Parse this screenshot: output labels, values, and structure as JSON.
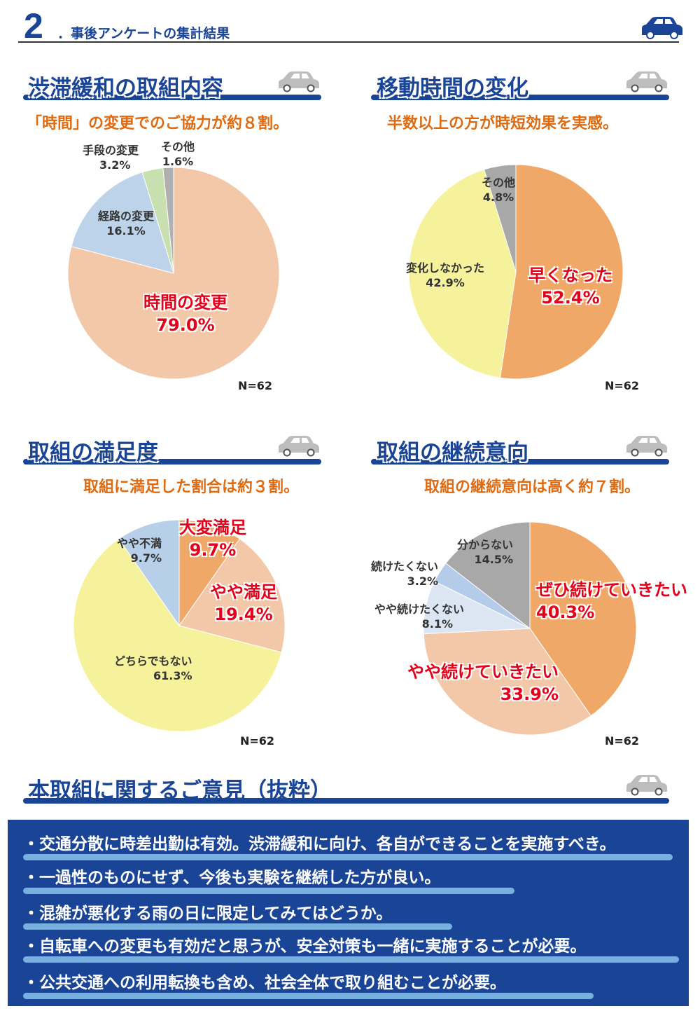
{
  "header": {
    "number": "2",
    "title": "．事後アンケートの集計結果",
    "icon": "car-icon"
  },
  "colors": {
    "brand": "#1a4496",
    "subtitle": "#e06a10",
    "highlight": "#e5001a"
  },
  "chart_data": [
    {
      "type": "pie",
      "title": "渋滞緩和の取組内容",
      "subtitle": "「時間」の変更でのご協力が約８割。",
      "n_label": "N=62",
      "slices": [
        {
          "label": "時間の変更",
          "value": 79.0,
          "pct": "79.0%",
          "color": "#f2c8a8"
        },
        {
          "label": "経路の変更",
          "value": 16.1,
          "pct": "16.1%",
          "color": "#bcd3ea"
        },
        {
          "label": "手段の変更",
          "value": 3.2,
          "pct": "3.2%",
          "color": "#c8e0b0"
        },
        {
          "label": "その他",
          "value": 1.6,
          "pct": "1.6%",
          "color": "#b0b0b0"
        }
      ]
    },
    {
      "type": "pie",
      "title": "移動時間の変化",
      "subtitle": "半数以上の方が時短効果を実感。",
      "n_label": "N=62",
      "slices": [
        {
          "label": "早くなった",
          "value": 52.4,
          "pct": "52.4%",
          "color": "#f0a868"
        },
        {
          "label": "変化しなかった",
          "value": 42.9,
          "pct": "42.9%",
          "color": "#f5f29b"
        },
        {
          "label": "その他",
          "value": 4.8,
          "pct": "4.8%",
          "color": "#a8a8a8"
        }
      ]
    },
    {
      "type": "pie",
      "title": "取組の満足度",
      "subtitle": "取組に満足した割合は約３割。",
      "n_label": "N=62",
      "slices": [
        {
          "label": "大変満足",
          "value": 9.7,
          "pct": "9.7%",
          "color": "#f0a868"
        },
        {
          "label": "やや満足",
          "value": 19.4,
          "pct": "19.4%",
          "color": "#f2c8a8"
        },
        {
          "label": "どちらでもない",
          "value": 61.3,
          "pct": "61.3%",
          "color": "#f5f29b"
        },
        {
          "label": "やや不満",
          "value": 9.7,
          "pct": "9.7%",
          "color": "#b8cfea"
        }
      ]
    },
    {
      "type": "pie",
      "title": "取組の継続意向",
      "subtitle": "取組の継続意向は高く約７割。",
      "n_label": "N=62",
      "slices": [
        {
          "label": "ぜひ続けていきたい",
          "value": 40.3,
          "pct": "40.3%",
          "color": "#f0a868"
        },
        {
          "label": "やや続けていきたい",
          "value": 33.9,
          "pct": "33.9%",
          "color": "#f2c8a8"
        },
        {
          "label": "やや続けたくない",
          "value": 8.1,
          "pct": "8.1%",
          "color": "#dce6f3"
        },
        {
          "label": "続けたくない",
          "value": 3.2,
          "pct": "3.2%",
          "color": "#b4cbea"
        },
        {
          "label": "分からない",
          "value": 14.5,
          "pct": "14.5%",
          "color": "#a8a8a8"
        }
      ]
    }
  ],
  "opinions": {
    "title": "本取組に関するご意見（抜粋）",
    "items": [
      "・交通分散に時差出勤は有効。渋滞緩和に向け、各自ができることを実施すべき。",
      "・一過性のものにせず、今後も実験を継続した方が良い。",
      "・混雑が悪化する雨の日に限定してみてはどうか。",
      "・自転車への変更も有効だと思うが、安全対策も一緒に実施することが必要。",
      "・公共交通への利用転換も含め、社会全体で取り組むことが必要。"
    ]
  }
}
